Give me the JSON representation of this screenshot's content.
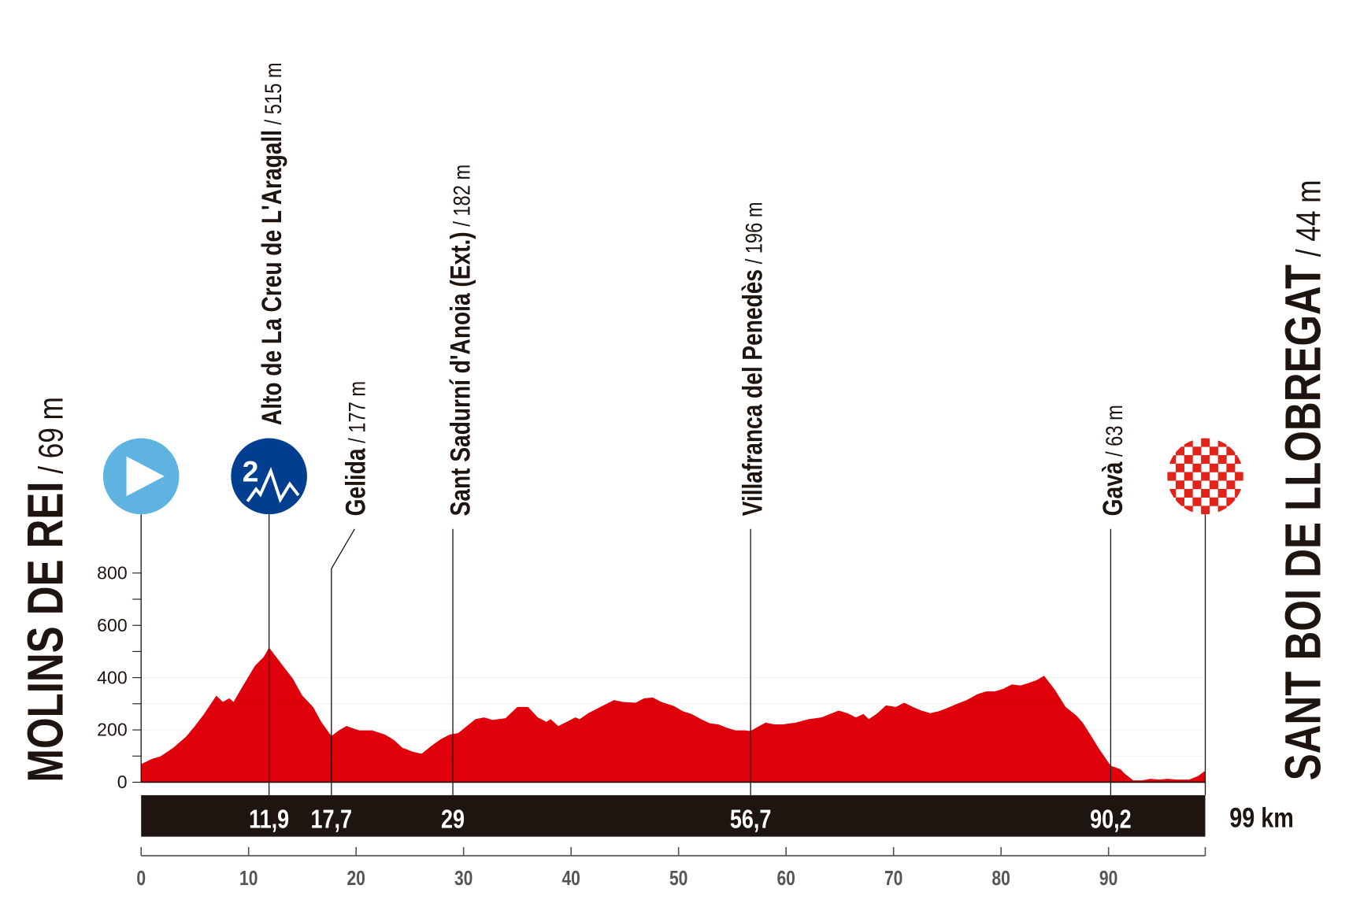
{
  "chart_data": {
    "type": "area",
    "profile_color": "#e0000b",
    "bar_color": "#1e1410",
    "start_color": "#5fb3e0",
    "climb_color": "#003f8f",
    "finish_color": "#e2231a",
    "xlim": [
      0,
      99
    ],
    "ylim": [
      0,
      800
    ],
    "y_ticks": [
      0,
      200,
      400,
      600,
      800
    ],
    "y_minor_ticks": [
      100,
      300,
      500,
      700
    ],
    "x_ticks": [
      0,
      10,
      20,
      30,
      40,
      50,
      60,
      70,
      80,
      90
    ],
    "total_distance_label": "99 km",
    "start": {
      "name": "MOLINS DE REI",
      "alt": "/ 69 m",
      "km": 0,
      "icon": "start-play-icon"
    },
    "finish": {
      "name": "SANT BOI DE LLOBREGAT",
      "alt": "/ 44 m",
      "km": 99,
      "icon": "finish-checkered-flag-icon"
    },
    "points_of_interest": [
      {
        "name": "Alto de La Creu de L'Aragall",
        "alt": "/ 515 m",
        "km": 11.9,
        "km_label": "11,9",
        "elevation": 515,
        "category": "2",
        "icon": "mountain-category-icon"
      },
      {
        "name": "Gelida",
        "alt": "/ 177 m",
        "km": 17.7,
        "km_label": "17,7",
        "elevation": 177
      },
      {
        "name": "Sant Sadurní d'Anoia (Ext.)",
        "alt": "/ 182 m",
        "km": 29,
        "km_label": "29",
        "elevation": 182
      },
      {
        "name": "Villafranca del Penedès",
        "alt": "/ 196 m",
        "km": 56.7,
        "km_label": "56,7",
        "elevation": 196
      },
      {
        "name": "Gavà",
        "alt": "/ 63 m",
        "km": 90.2,
        "km_label": "90,2",
        "elevation": 63
      }
    ],
    "profile": [
      [
        0,
        69
      ],
      [
        1,
        89
      ],
      [
        1.8,
        99
      ],
      [
        3,
        132
      ],
      [
        4.2,
        175
      ],
      [
        5,
        215
      ],
      [
        5.8,
        258
      ],
      [
        7,
        331
      ],
      [
        7.6,
        307
      ],
      [
        8.2,
        321
      ],
      [
        8.6,
        307
      ],
      [
        9.4,
        364
      ],
      [
        10.6,
        446
      ],
      [
        11.4,
        479
      ],
      [
        11.9,
        515
      ],
      [
        13,
        456
      ],
      [
        14.1,
        397
      ],
      [
        15,
        331
      ],
      [
        16,
        288
      ],
      [
        16.8,
        228
      ],
      [
        17.7,
        177
      ],
      [
        18.4,
        198
      ],
      [
        19.1,
        215
      ],
      [
        20.3,
        198
      ],
      [
        21.5,
        198
      ],
      [
        22.7,
        182
      ],
      [
        23.5,
        162
      ],
      [
        24.3,
        132
      ],
      [
        25.3,
        116
      ],
      [
        26.1,
        109
      ],
      [
        27.1,
        142
      ],
      [
        27.9,
        165
      ],
      [
        28.7,
        182
      ],
      [
        29.5,
        188
      ],
      [
        30.3,
        215
      ],
      [
        31.1,
        241
      ],
      [
        31.9,
        248
      ],
      [
        32.7,
        238
      ],
      [
        33.9,
        245
      ],
      [
        35,
        288
      ],
      [
        36,
        288
      ],
      [
        36.9,
        248
      ],
      [
        37.7,
        231
      ],
      [
        38.1,
        241
      ],
      [
        38.8,
        215
      ],
      [
        39.6,
        231
      ],
      [
        40.4,
        248
      ],
      [
        40.8,
        241
      ],
      [
        41.6,
        264
      ],
      [
        42.4,
        281
      ],
      [
        43.2,
        298
      ],
      [
        44,
        314
      ],
      [
        44.8,
        307
      ],
      [
        46,
        304
      ],
      [
        46.8,
        321
      ],
      [
        47.6,
        324
      ],
      [
        48.4,
        307
      ],
      [
        49.6,
        291
      ],
      [
        50.4,
        271
      ],
      [
        51.2,
        261
      ],
      [
        52.1,
        241
      ],
      [
        52.9,
        225
      ],
      [
        53.7,
        221
      ],
      [
        54.5,
        208
      ],
      [
        55.3,
        198
      ],
      [
        56.1,
        198
      ],
      [
        56.7,
        196
      ],
      [
        57.5,
        215
      ],
      [
        58.1,
        228
      ],
      [
        58.9,
        221
      ],
      [
        59.7,
        221
      ],
      [
        60.9,
        228
      ],
      [
        62.1,
        241
      ],
      [
        63.3,
        248
      ],
      [
        64.1,
        261
      ],
      [
        64.9,
        274
      ],
      [
        65.7,
        264
      ],
      [
        66.5,
        248
      ],
      [
        67.2,
        261
      ],
      [
        67.7,
        241
      ],
      [
        68.5,
        264
      ],
      [
        69.3,
        294
      ],
      [
        70.2,
        288
      ],
      [
        71,
        304
      ],
      [
        71.8,
        288
      ],
      [
        72.6,
        274
      ],
      [
        73.4,
        264
      ],
      [
        74.2,
        271
      ],
      [
        75,
        284
      ],
      [
        75.8,
        298
      ],
      [
        76.8,
        314
      ],
      [
        77.8,
        337
      ],
      [
        78.6,
        347
      ],
      [
        79.4,
        347
      ],
      [
        80.2,
        357
      ],
      [
        81,
        374
      ],
      [
        81.8,
        370
      ],
      [
        82.6,
        380
      ],
      [
        83.3,
        390
      ],
      [
        84,
        407
      ],
      [
        85,
        354
      ],
      [
        86,
        288
      ],
      [
        87,
        255
      ],
      [
        87.6,
        228
      ],
      [
        88.3,
        182
      ],
      [
        89.1,
        129
      ],
      [
        90.2,
        63
      ],
      [
        91.1,
        50
      ],
      [
        91.5,
        33
      ],
      [
        92.3,
        7
      ],
      [
        93.1,
        7
      ],
      [
        93.9,
        13
      ],
      [
        94.7,
        10
      ],
      [
        95.5,
        13
      ],
      [
        96.3,
        10
      ],
      [
        97.5,
        10
      ],
      [
        98.3,
        23
      ],
      [
        99,
        44
      ]
    ]
  }
}
